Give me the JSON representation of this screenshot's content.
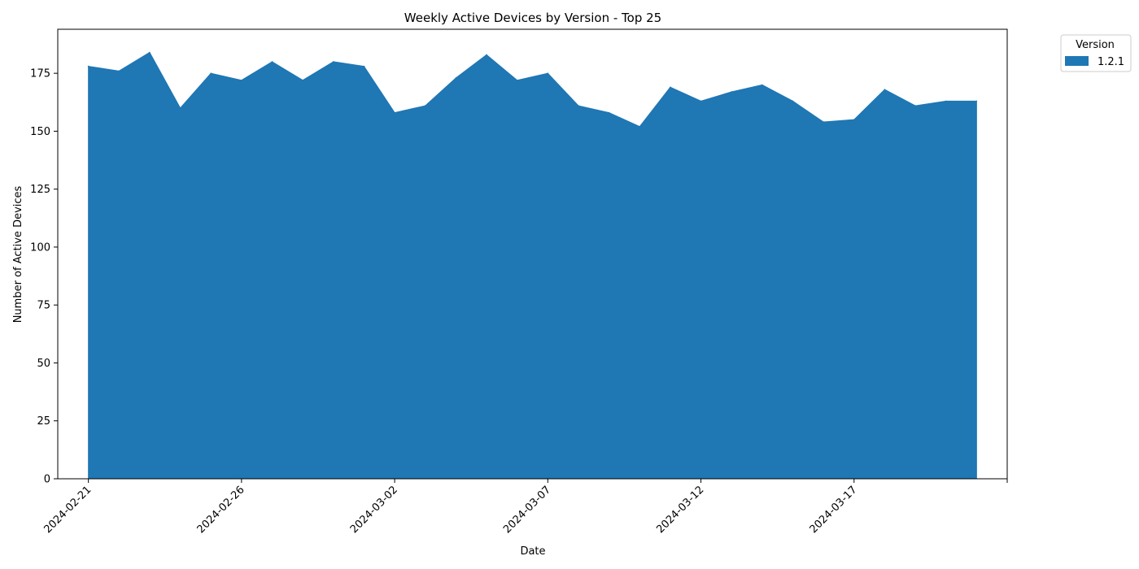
{
  "chart_data": {
    "type": "area",
    "title": "Weekly Active Devices by Version - Top 25",
    "xlabel": "Date",
    "ylabel": "Number of Active Devices",
    "x": [
      "2024-02-21",
      "2024-02-22",
      "2024-02-23",
      "2024-02-24",
      "2024-02-25",
      "2024-02-26",
      "2024-02-27",
      "2024-02-28",
      "2024-02-29",
      "2024-03-01",
      "2024-03-02",
      "2024-03-03",
      "2024-03-04",
      "2024-03-05",
      "2024-03-06",
      "2024-03-07",
      "2024-03-08",
      "2024-03-09",
      "2024-03-10",
      "2024-03-11",
      "2024-03-12",
      "2024-03-13",
      "2024-03-14",
      "2024-03-15",
      "2024-03-16",
      "2024-03-17",
      "2024-03-18",
      "2024-03-19",
      "2024-03-20",
      "2024-03-21"
    ],
    "series": [
      {
        "name": "1.2.1",
        "color": "#1f77b4",
        "values": [
          178,
          176,
          184,
          160,
          175,
          172,
          180,
          172,
          180,
          178,
          158,
          161,
          173,
          183,
          172,
          175,
          161,
          158,
          152,
          169,
          163,
          167,
          170,
          163,
          154,
          155,
          168,
          161,
          163,
          163
        ]
      }
    ],
    "xlim": [
      "2024-02-20",
      "2024-03-22"
    ],
    "ylim": [
      0,
      194
    ],
    "yticks": [
      0,
      25,
      50,
      75,
      100,
      125,
      150,
      175
    ],
    "xticks": [
      "2024-02-21",
      "2024-02-26",
      "2024-03-02",
      "2024-03-07",
      "2024-03-12",
      "2024-03-17",
      "2024-03-22"
    ],
    "xtick_labels": [
      "2024-02-21",
      "2024-02-26",
      "2024-03-02",
      "2024-03-07",
      "2024-03-12",
      "2024-03-17",
      ""
    ],
    "legend": {
      "title": "Version",
      "placement": "upper right, outside"
    },
    "grid": false
  }
}
